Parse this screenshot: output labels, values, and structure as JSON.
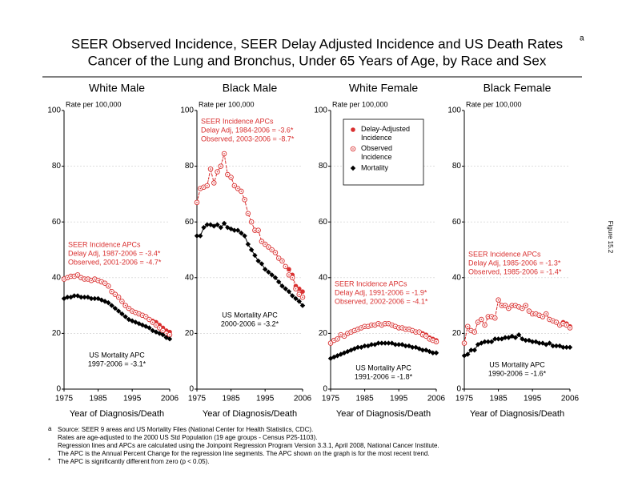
{
  "page": {
    "title": [
      "SEER Observed Incidence, SEER Delay Adjusted Incidence and US Death Rates",
      "Cancer of the Lung and Bronchus, Under 65 Years of Age, by Race and Sex"
    ],
    "title_note": "a",
    "figure_label": "Figure 15.2",
    "footnotes": [
      {
        "mark": "a",
        "lines": [
          "Source: SEER 9 areas and US Mortality Files (National Center for Health Statistics, CDC).",
          "Rates are age-adjusted to the 2000 US Std Population (19 age groups - Census P25-1103).",
          "Regression lines and APCs are calculated using the Joinpoint Regression Program Version 3.3.1, April 2008, National Cancer Institute.",
          "The APC is the Annual Percent Change for the regression line segments. The APC shown on the graph is for the most recent trend."
        ]
      },
      {
        "mark": "*",
        "lines": [
          "The APC is significantly different from zero (p < 0.05)."
        ]
      }
    ]
  },
  "chart_data": [
    {
      "type": "line",
      "title": "White Male",
      "y_label": "Rate per 100,000",
      "x_label": "Year of Diagnosis/Death",
      "x": [
        1975,
        1976,
        1977,
        1978,
        1979,
        1980,
        1981,
        1982,
        1983,
        1984,
        1985,
        1986,
        1987,
        1988,
        1989,
        1990,
        1991,
        1992,
        1993,
        1994,
        1995,
        1996,
        1997,
        1998,
        1999,
        2000,
        2001,
        2002,
        2003,
        2004,
        2005,
        2006
      ],
      "xlim": [
        1975,
        2006
      ],
      "xticks": [
        1975,
        1985,
        1995,
        2006
      ],
      "ylim": [
        0,
        100
      ],
      "yticks": [
        0,
        20,
        40,
        60,
        80,
        100
      ],
      "grid": true,
      "incidence_note": [
        "SEER Incidence APCs",
        "Delay Adj, 1987-2006 = -3.4*",
        "Observed, 2001-2006 = -4.7*"
      ],
      "mortality_note": [
        "US Mortality APC",
        "1997-2006 = -3.1*"
      ],
      "series": [
        {
          "color": "#d93030",
          "marker": "filled",
          "values": [
            39.5,
            40,
            40.5,
            40.5,
            41,
            40,
            39.5,
            39.5,
            39,
            39.5,
            39,
            38.5,
            38,
            37,
            35,
            34,
            33,
            31.5,
            30,
            29,
            28,
            27.5,
            27,
            26.5,
            26,
            25,
            24.5,
            24,
            23,
            22,
            21,
            20.5
          ]
        },
        {
          "color": "#d93030",
          "marker": "open",
          "values": [
            39.5,
            40,
            40.5,
            40.5,
            41,
            40,
            39.5,
            39.5,
            39,
            39.5,
            39,
            38.5,
            38,
            37,
            35,
            34,
            33,
            31.5,
            30,
            29,
            28,
            27.5,
            27,
            26.5,
            26,
            25,
            24,
            23,
            22,
            21,
            20,
            19.5
          ]
        },
        {
          "color": "#000000",
          "marker": "diamond",
          "values": [
            32.5,
            33,
            33,
            33.5,
            33.5,
            33,
            33,
            33,
            32.5,
            32.5,
            32.5,
            32,
            31.5,
            31,
            30,
            29,
            28,
            27,
            26,
            25,
            24.5,
            24,
            23.5,
            23,
            22.5,
            22,
            21,
            20.5,
            20,
            19.5,
            18.5,
            18
          ]
        }
      ]
    },
    {
      "type": "line",
      "title": "Black Male",
      "y_label": "Rate per 100,000",
      "x_label": "Year of Diagnosis/Death",
      "x": [
        1975,
        1976,
        1977,
        1978,
        1979,
        1980,
        1981,
        1982,
        1983,
        1984,
        1985,
        1986,
        1987,
        1988,
        1989,
        1990,
        1991,
        1992,
        1993,
        1994,
        1995,
        1996,
        1997,
        1998,
        1999,
        2000,
        2001,
        2002,
        2003,
        2004,
        2005,
        2006
      ],
      "xlim": [
        1975,
        2006
      ],
      "xticks": [
        1975,
        1985,
        1995,
        2006
      ],
      "ylim": [
        0,
        100
      ],
      "yticks": [
        0,
        20,
        40,
        60,
        80,
        100
      ],
      "grid": true,
      "incidence_note": [
        "SEER Incidence APCs",
        "Delay Adj, 1984-2006 = -3.6*",
        "Observed, 2003-2006 = -8.7*"
      ],
      "mortality_note": [
        "US Mortality APC",
        "2000-2006 = -3.2*"
      ],
      "series": [
        {
          "color": "#d93030",
          "marker": "filled",
          "values": [
            67,
            72,
            72.5,
            73,
            79,
            74,
            78,
            80,
            84.5,
            77,
            76,
            73,
            72,
            71,
            68,
            63,
            60,
            57,
            57,
            53,
            52,
            51,
            50,
            49,
            47,
            46,
            44,
            43,
            41,
            37,
            36,
            35
          ]
        },
        {
          "color": "#d93030",
          "marker": "open",
          "values": [
            67,
            72,
            72.5,
            73,
            79,
            74,
            78,
            80,
            84.5,
            77,
            76,
            73,
            72,
            71,
            68,
            63,
            60,
            57,
            57,
            53,
            52,
            51,
            50,
            49,
            47,
            46,
            44,
            41,
            40,
            36,
            34,
            33
          ]
        },
        {
          "color": "#000000",
          "marker": "diamond",
          "values": [
            55,
            55,
            58,
            59,
            59,
            58.5,
            59,
            58,
            59.5,
            58,
            57.5,
            57,
            57,
            56,
            55,
            52,
            50,
            48,
            46,
            45,
            43,
            42,
            41,
            40,
            38.5,
            37,
            36,
            35,
            33.5,
            32.5,
            31.5,
            30
          ]
        }
      ]
    },
    {
      "type": "line",
      "title": "White Female",
      "y_label": "Rate per 100,000",
      "x_label": "Year of Diagnosis/Death",
      "x": [
        1975,
        1976,
        1977,
        1978,
        1979,
        1980,
        1981,
        1982,
        1983,
        1984,
        1985,
        1986,
        1987,
        1988,
        1989,
        1990,
        1991,
        1992,
        1993,
        1994,
        1995,
        1996,
        1997,
        1998,
        1999,
        2000,
        2001,
        2002,
        2003,
        2004,
        2005,
        2006
      ],
      "xlim": [
        1975,
        2006
      ],
      "xticks": [
        1975,
        1985,
        1995,
        2006
      ],
      "ylim": [
        0,
        100
      ],
      "yticks": [
        0,
        20,
        40,
        60,
        80,
        100
      ],
      "grid": true,
      "legend": "top",
      "incidence_note": [
        "SEER Incidence APCs",
        "Delay Adj, 1991-2006 = -1.9*",
        "Observed, 2002-2006 = -4.1*"
      ],
      "mortality_note": [
        "US Mortality APC",
        "1991-2006 = -1.8*"
      ],
      "series": [
        {
          "name": "Delay-Adjusted Incidence",
          "color": "#d93030",
          "marker": "filled",
          "values": [
            16.5,
            17.5,
            18,
            19.5,
            19,
            20,
            20.5,
            21,
            21.5,
            22,
            22.5,
            22.5,
            23,
            23,
            23.5,
            23,
            23.5,
            23.5,
            23,
            22.5,
            22,
            22,
            21.5,
            21.5,
            21,
            20.5,
            20.5,
            20,
            19.5,
            18.5,
            18,
            17.5
          ]
        },
        {
          "name": "Observed Incidence",
          "color": "#d93030",
          "marker": "open",
          "values": [
            16.5,
            17.5,
            18,
            19.5,
            19,
            20,
            20.5,
            21,
            21.5,
            22,
            22.5,
            22.5,
            23,
            23,
            23.5,
            23,
            23.5,
            23.5,
            23,
            22.5,
            22,
            22,
            21.5,
            21.5,
            21,
            20.5,
            20.5,
            19.5,
            19,
            18,
            17.5,
            17
          ]
        },
        {
          "name": "Mortality",
          "color": "#000000",
          "marker": "diamond",
          "values": [
            11,
            11.5,
            12,
            12.5,
            13,
            13.5,
            14,
            14.5,
            15,
            15,
            15.5,
            15.5,
            16,
            16,
            16.5,
            16.5,
            16.5,
            16.5,
            16.5,
            16,
            16,
            16,
            15.5,
            15.5,
            15,
            15,
            14.5,
            14,
            14,
            13.5,
            13,
            13
          ]
        }
      ]
    },
    {
      "type": "line",
      "title": "Black Female",
      "y_label": "Rate per 100,000",
      "x_label": "Year of Diagnosis/Death",
      "x": [
        1975,
        1976,
        1977,
        1978,
        1979,
        1980,
        1981,
        1982,
        1983,
        1984,
        1985,
        1986,
        1987,
        1988,
        1989,
        1990,
        1991,
        1992,
        1993,
        1994,
        1995,
        1996,
        1997,
        1998,
        1999,
        2000,
        2001,
        2002,
        2003,
        2004,
        2005,
        2006
      ],
      "xlim": [
        1975,
        2006
      ],
      "xticks": [
        1975,
        1985,
        1995,
        2006
      ],
      "ylim": [
        0,
        100
      ],
      "yticks": [
        0,
        20,
        40,
        60,
        80,
        100
      ],
      "grid": true,
      "incidence_note": [
        "SEER Incidence APCs",
        "Delay Adj, 1985-2006 = -1.3*",
        "Observed, 1985-2006 = -1.4*"
      ],
      "mortality_note": [
        "US Mortality APC",
        "1990-2006 = -1.6*"
      ],
      "series": [
        {
          "color": "#d93030",
          "marker": "filled",
          "values": [
            16.5,
            22.5,
            21,
            20.5,
            24,
            25,
            23,
            26,
            26,
            25.5,
            32,
            30,
            30,
            29,
            30,
            30,
            29.5,
            29,
            30,
            28,
            27,
            27,
            26.5,
            26,
            27,
            25,
            24.5,
            24,
            23,
            24,
            23.5,
            22.5
          ]
        },
        {
          "color": "#d93030",
          "marker": "open",
          "values": [
            16.5,
            22.5,
            21,
            20.5,
            24,
            25,
            23,
            26,
            26,
            25.5,
            32,
            30,
            30,
            29,
            30,
            30,
            29.5,
            29,
            30,
            28,
            27,
            27,
            26.5,
            26,
            27,
            25,
            24.5,
            24,
            23,
            23.5,
            23,
            22
          ]
        },
        {
          "color": "#000000",
          "marker": "diamond",
          "values": [
            12,
            12.5,
            14,
            14,
            16,
            16.5,
            17,
            17,
            17,
            18,
            18,
            18,
            18.5,
            18.5,
            19,
            18.5,
            19.5,
            18,
            17.5,
            17.5,
            17,
            17,
            16.5,
            16.5,
            16,
            16.5,
            15.5,
            15.5,
            15.5,
            15,
            15,
            15
          ]
        }
      ]
    }
  ]
}
